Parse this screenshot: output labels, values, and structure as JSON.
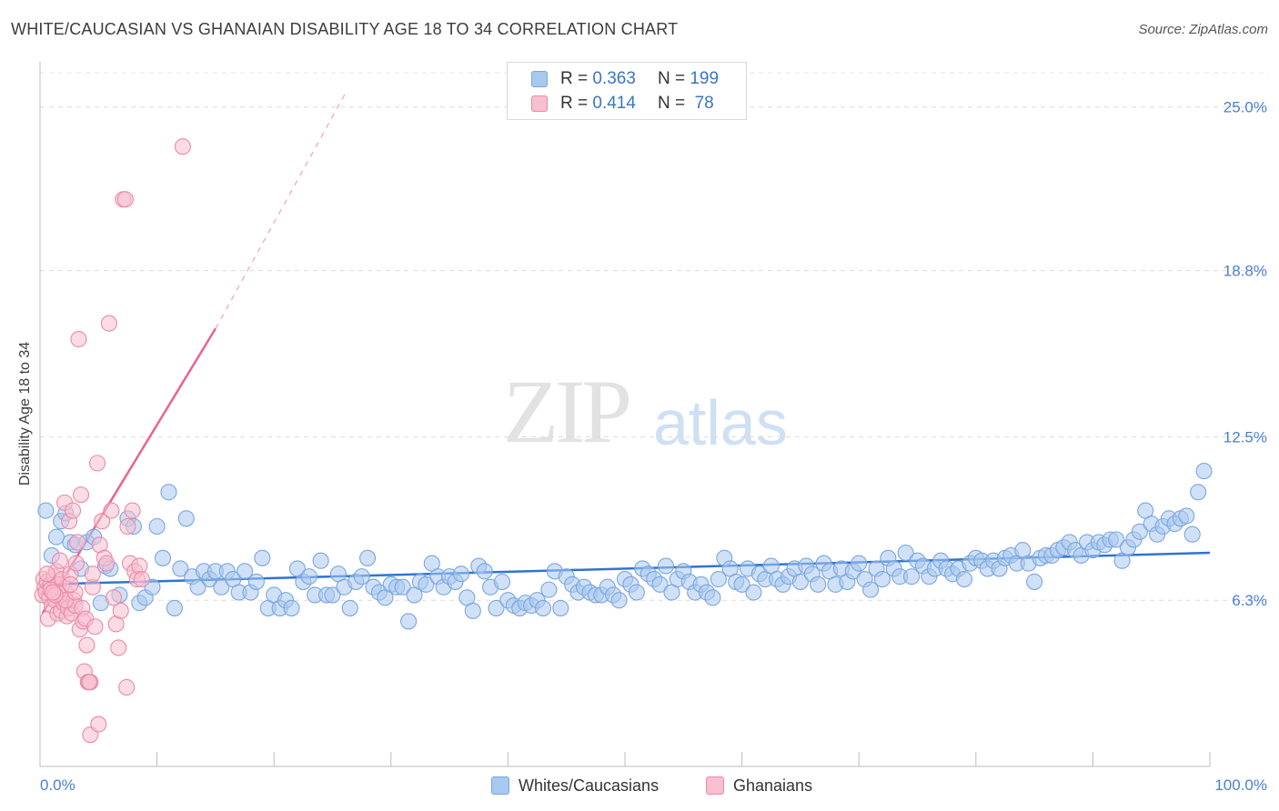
{
  "title": "WHITE/CAUCASIAN VS GHANAIAN DISABILITY AGE 18 TO 34 CORRELATION CHART",
  "source": "Source: ZipAtlas.com",
  "watermark": {
    "zip": "ZIP",
    "atlas": "atlas"
  },
  "legend": {
    "rows": [
      {
        "r_label": "R =",
        "r_value": "0.363",
        "n_label": "N =",
        "n_value": "199",
        "color": "#a9c8f0",
        "border": "#7aa6dd"
      },
      {
        "r_label": "R =",
        "r_value": "0.414",
        "n_label": "N =",
        "n_value": " 78",
        "color": "#f7bfd0",
        "border": "#e98aa9"
      }
    ]
  },
  "bottom_legend": [
    {
      "label": "Whites/Caucasians",
      "color": "#a9c8f0",
      "border": "#7aa6dd"
    },
    {
      "label": "Ghanaians",
      "color": "#f7bfd0",
      "border": "#e98aa9"
    }
  ],
  "chart_data": {
    "type": "scatter",
    "ylabel": "Disability Age 18 to 34",
    "xlim": [
      0,
      100
    ],
    "ylim": [
      0,
      26.3
    ],
    "x_tick_labels": [
      "0.0%",
      "100.0%"
    ],
    "y_ticks": [
      6.3,
      12.5,
      18.8,
      25.0
    ],
    "y_tick_labels": [
      "6.3%",
      "12.5%",
      "18.8%",
      "25.0%"
    ],
    "grid": "horizontal dashed",
    "legend_placement": "top-center",
    "series": [
      {
        "name": "Whites/Caucasians",
        "color": "#7aa6dd",
        "fill": "#a9c8f0",
        "trend": {
          "x": [
            0,
            100
          ],
          "y": [
            6.9,
            8.1
          ],
          "color": "#2f74d0"
        },
        "points": [
          [
            0.5,
            9.7
          ],
          [
            1,
            8
          ],
          [
            1.4,
            8.7
          ],
          [
            1.8,
            9.3
          ],
          [
            2.2,
            9.6
          ],
          [
            2.6,
            8.5
          ],
          [
            3,
            8.4
          ],
          [
            3.5,
            7.5
          ],
          [
            4,
            8.5
          ],
          [
            4.6,
            8.7
          ],
          [
            5.2,
            6.2
          ],
          [
            5.6,
            7.6
          ],
          [
            6,
            7.5
          ],
          [
            6.8,
            6.5
          ],
          [
            7.5,
            9.4
          ],
          [
            8,
            9.1
          ],
          [
            8.5,
            6.2
          ],
          [
            9,
            6.4
          ],
          [
            9.6,
            6.8
          ],
          [
            10,
            9.1
          ],
          [
            10.5,
            7.9
          ],
          [
            11,
            10.4
          ],
          [
            11.5,
            6
          ],
          [
            12,
            7.5
          ],
          [
            12.5,
            9.4
          ],
          [
            13,
            7.2
          ],
          [
            13.5,
            6.8
          ],
          [
            14,
            7.4
          ],
          [
            14.5,
            7.1
          ],
          [
            15,
            7.4
          ],
          [
            15.5,
            6.8
          ],
          [
            16,
            7.4
          ],
          [
            16.5,
            7.1
          ],
          [
            17,
            6.6
          ],
          [
            17.5,
            7.4
          ],
          [
            18,
            6.6
          ],
          [
            18.5,
            7
          ],
          [
            19,
            7.9
          ],
          [
            19.5,
            6
          ],
          [
            20,
            6.5
          ],
          [
            20.5,
            6
          ],
          [
            21,
            6.3
          ],
          [
            21.5,
            6
          ],
          [
            22,
            7.5
          ],
          [
            22.5,
            7
          ],
          [
            23,
            7.2
          ],
          [
            23.5,
            6.5
          ],
          [
            24,
            7.8
          ],
          [
            24.5,
            6.5
          ],
          [
            25,
            6.5
          ],
          [
            25.5,
            7.3
          ],
          [
            26,
            6.8
          ],
          [
            26.5,
            6
          ],
          [
            27,
            7
          ],
          [
            27.5,
            7.2
          ],
          [
            28,
            7.9
          ],
          [
            28.5,
            6.8
          ],
          [
            29,
            6.6
          ],
          [
            29.5,
            6.4
          ],
          [
            30,
            6.9
          ],
          [
            30.5,
            6.8
          ],
          [
            31,
            6.8
          ],
          [
            31.5,
            5.5
          ],
          [
            32,
            6.5
          ],
          [
            32.5,
            7
          ],
          [
            33,
            6.9
          ],
          [
            33.5,
            7.7
          ],
          [
            34,
            7.2
          ],
          [
            34.5,
            6.8
          ],
          [
            35,
            7.2
          ],
          [
            35.5,
            7
          ],
          [
            36,
            7.3
          ],
          [
            36.5,
            6.4
          ],
          [
            37,
            5.9
          ],
          [
            37.5,
            7.6
          ],
          [
            38,
            7.4
          ],
          [
            38.5,
            6.8
          ],
          [
            39,
            6
          ],
          [
            39.5,
            7
          ],
          [
            40,
            6.3
          ],
          [
            40.5,
            6.1
          ],
          [
            41,
            6
          ],
          [
            41.5,
            6.2
          ],
          [
            42,
            6.1
          ],
          [
            42.5,
            6.3
          ],
          [
            43,
            6
          ],
          [
            43.5,
            6.7
          ],
          [
            44,
            7.4
          ],
          [
            44.5,
            6
          ],
          [
            45,
            7.2
          ],
          [
            45.5,
            6.9
          ],
          [
            46,
            6.6
          ],
          [
            46.5,
            6.8
          ],
          [
            47,
            6.6
          ],
          [
            47.5,
            6.5
          ],
          [
            48,
            6.5
          ],
          [
            48.5,
            6.8
          ],
          [
            49,
            6.5
          ],
          [
            49.5,
            6.3
          ],
          [
            50,
            7.1
          ],
          [
            50.5,
            6.9
          ],
          [
            51,
            6.6
          ],
          [
            51.5,
            7.5
          ],
          [
            52,
            7.3
          ],
          [
            52.5,
            7.1
          ],
          [
            53,
            6.9
          ],
          [
            53.5,
            7.6
          ],
          [
            54,
            6.6
          ],
          [
            54.5,
            7.1
          ],
          [
            55,
            7.4
          ],
          [
            55.5,
            7
          ],
          [
            56,
            6.6
          ],
          [
            56.5,
            6.9
          ],
          [
            57,
            6.6
          ],
          [
            57.5,
            6.4
          ],
          [
            58,
            7.1
          ],
          [
            58.5,
            7.9
          ],
          [
            59,
            7.5
          ],
          [
            59.5,
            7
          ],
          [
            60,
            6.9
          ],
          [
            60.5,
            7.5
          ],
          [
            61,
            6.6
          ],
          [
            61.5,
            7.3
          ],
          [
            62,
            7.1
          ],
          [
            62.5,
            7.6
          ],
          [
            63,
            7.1
          ],
          [
            63.5,
            6.9
          ],
          [
            64,
            7.2
          ],
          [
            64.5,
            7.5
          ],
          [
            65,
            7
          ],
          [
            65.5,
            7.6
          ],
          [
            66,
            7.3
          ],
          [
            66.5,
            6.9
          ],
          [
            67,
            7.7
          ],
          [
            67.5,
            7.4
          ],
          [
            68,
            6.9
          ],
          [
            68.5,
            7.5
          ],
          [
            69,
            7
          ],
          [
            69.5,
            7.4
          ],
          [
            70,
            7.7
          ],
          [
            70.5,
            7.1
          ],
          [
            71,
            6.7
          ],
          [
            71.5,
            7.5
          ],
          [
            72,
            7.1
          ],
          [
            72.5,
            7.9
          ],
          [
            73,
            7.5
          ],
          [
            73.5,
            7.2
          ],
          [
            74,
            8.1
          ],
          [
            74.5,
            7.2
          ],
          [
            75,
            7.8
          ],
          [
            75.5,
            7.6
          ],
          [
            76,
            7.2
          ],
          [
            76.5,
            7.5
          ],
          [
            77,
            7.8
          ],
          [
            77.5,
            7.5
          ],
          [
            78,
            7.3
          ],
          [
            78.5,
            7.5
          ],
          [
            79,
            7.1
          ],
          [
            79.5,
            7.7
          ],
          [
            80,
            7.9
          ],
          [
            80.5,
            7.8
          ],
          [
            81,
            7.5
          ],
          [
            81.5,
            7.8
          ],
          [
            82,
            7.5
          ],
          [
            82.5,
            7.9
          ],
          [
            83,
            8
          ],
          [
            83.5,
            7.7
          ],
          [
            84,
            8.2
          ],
          [
            84.5,
            7.7
          ],
          [
            85,
            7
          ],
          [
            85.5,
            7.9
          ],
          [
            86,
            8
          ],
          [
            86.5,
            8
          ],
          [
            87,
            8.2
          ],
          [
            87.5,
            8.3
          ],
          [
            88,
            8.5
          ],
          [
            88.5,
            8.2
          ],
          [
            89,
            8
          ],
          [
            89.5,
            8.5
          ],
          [
            90,
            8.2
          ],
          [
            90.5,
            8.5
          ],
          [
            91,
            8.4
          ],
          [
            91.5,
            8.6
          ],
          [
            92,
            8.6
          ],
          [
            92.5,
            7.8
          ],
          [
            93,
            8.3
          ],
          [
            93.5,
            8.6
          ],
          [
            94,
            8.9
          ],
          [
            94.5,
            9.7
          ],
          [
            95,
            9.2
          ],
          [
            95.5,
            8.8
          ],
          [
            96,
            9.1
          ],
          [
            96.5,
            9.4
          ],
          [
            97,
            9.2
          ],
          [
            97.5,
            9.4
          ],
          [
            98,
            9.5
          ],
          [
            98.5,
            8.8
          ],
          [
            99,
            10.4
          ],
          [
            99.5,
            11.2
          ]
        ]
      },
      {
        "name": "Ghanaians",
        "color": "#e98aa9",
        "fill": "#f7bfd0",
        "trend": {
          "x": [
            0.2,
            15
          ],
          "y": [
            5.8,
            16.6
          ],
          "color": "#e8648e",
          "extension_x": [
            15,
            26.2
          ],
          "extension_y": [
            16.6,
            25.6
          ]
        },
        "points": [
          [
            0.2,
            6.5
          ],
          [
            0.3,
            7.1
          ],
          [
            0.4,
            6.8
          ],
          [
            0.5,
            6.6
          ],
          [
            0.6,
            7
          ],
          [
            0.7,
            5.6
          ],
          [
            0.8,
            6.4
          ],
          [
            0.9,
            6.9
          ],
          [
            1,
            6.1
          ],
          [
            1.1,
            6.6
          ],
          [
            1.2,
            7.2
          ],
          [
            1.3,
            6.3
          ],
          [
            1.4,
            7.4
          ],
          [
            1.5,
            5.8
          ],
          [
            1.6,
            6.9
          ],
          [
            1.7,
            6.5
          ],
          [
            1.8,
            5.9
          ],
          [
            1.9,
            7.1
          ],
          [
            2,
            6.2
          ],
          [
            2.1,
            10
          ],
          [
            2.2,
            6.6
          ],
          [
            2.3,
            5.7
          ],
          [
            2.4,
            6
          ],
          [
            2.5,
            9.3
          ],
          [
            2.6,
            7.3
          ],
          [
            2.7,
            5.8
          ],
          [
            2.8,
            9.7
          ],
          [
            2.9,
            6.3
          ],
          [
            3,
            6.1
          ],
          [
            3.1,
            7.7
          ],
          [
            3.2,
            8.5
          ],
          [
            3.3,
            16.2
          ],
          [
            3.4,
            5.2
          ],
          [
            3.5,
            10.3
          ],
          [
            3.6,
            6
          ],
          [
            3.7,
            5.5
          ],
          [
            3.8,
            3.6
          ],
          [
            3.9,
            5.6
          ],
          [
            4,
            4.6
          ],
          [
            4.1,
            3.2
          ],
          [
            4.3,
            3.2
          ],
          [
            4.5,
            6.8
          ],
          [
            4.7,
            5.3
          ],
          [
            4.9,
            11.5
          ],
          [
            5.1,
            8.4
          ],
          [
            5.3,
            9.3
          ],
          [
            5.5,
            7.9
          ],
          [
            5.7,
            7.7
          ],
          [
            5.9,
            16.8
          ],
          [
            6.1,
            9.7
          ],
          [
            6.3,
            6.4
          ],
          [
            6.5,
            5.4
          ],
          [
            6.7,
            4.5
          ],
          [
            6.9,
            5.9
          ],
          [
            7.1,
            21.5
          ],
          [
            7.3,
            21.5
          ],
          [
            7.5,
            9.1
          ],
          [
            7.7,
            7.7
          ],
          [
            7.9,
            9.7
          ],
          [
            8.1,
            7.4
          ],
          [
            8.3,
            7.1
          ],
          [
            8.5,
            7.6
          ],
          [
            8.7,
            7.1
          ],
          [
            4.2,
            3.2
          ],
          [
            1.5,
            6.6
          ],
          [
            0.9,
            6.7
          ],
          [
            2.2,
            6.3
          ],
          [
            1.3,
            6.5
          ],
          [
            3,
            6.6
          ],
          [
            4.3,
            1.2
          ],
          [
            4.5,
            7.3
          ],
          [
            7.4,
            3
          ],
          [
            12.2,
            23.5
          ],
          [
            0.6,
            7.3
          ],
          [
            1.7,
            7.8
          ],
          [
            5,
            1.6
          ],
          [
            2.6,
            6.9
          ],
          [
            1.1,
            6.6
          ]
        ]
      }
    ]
  }
}
